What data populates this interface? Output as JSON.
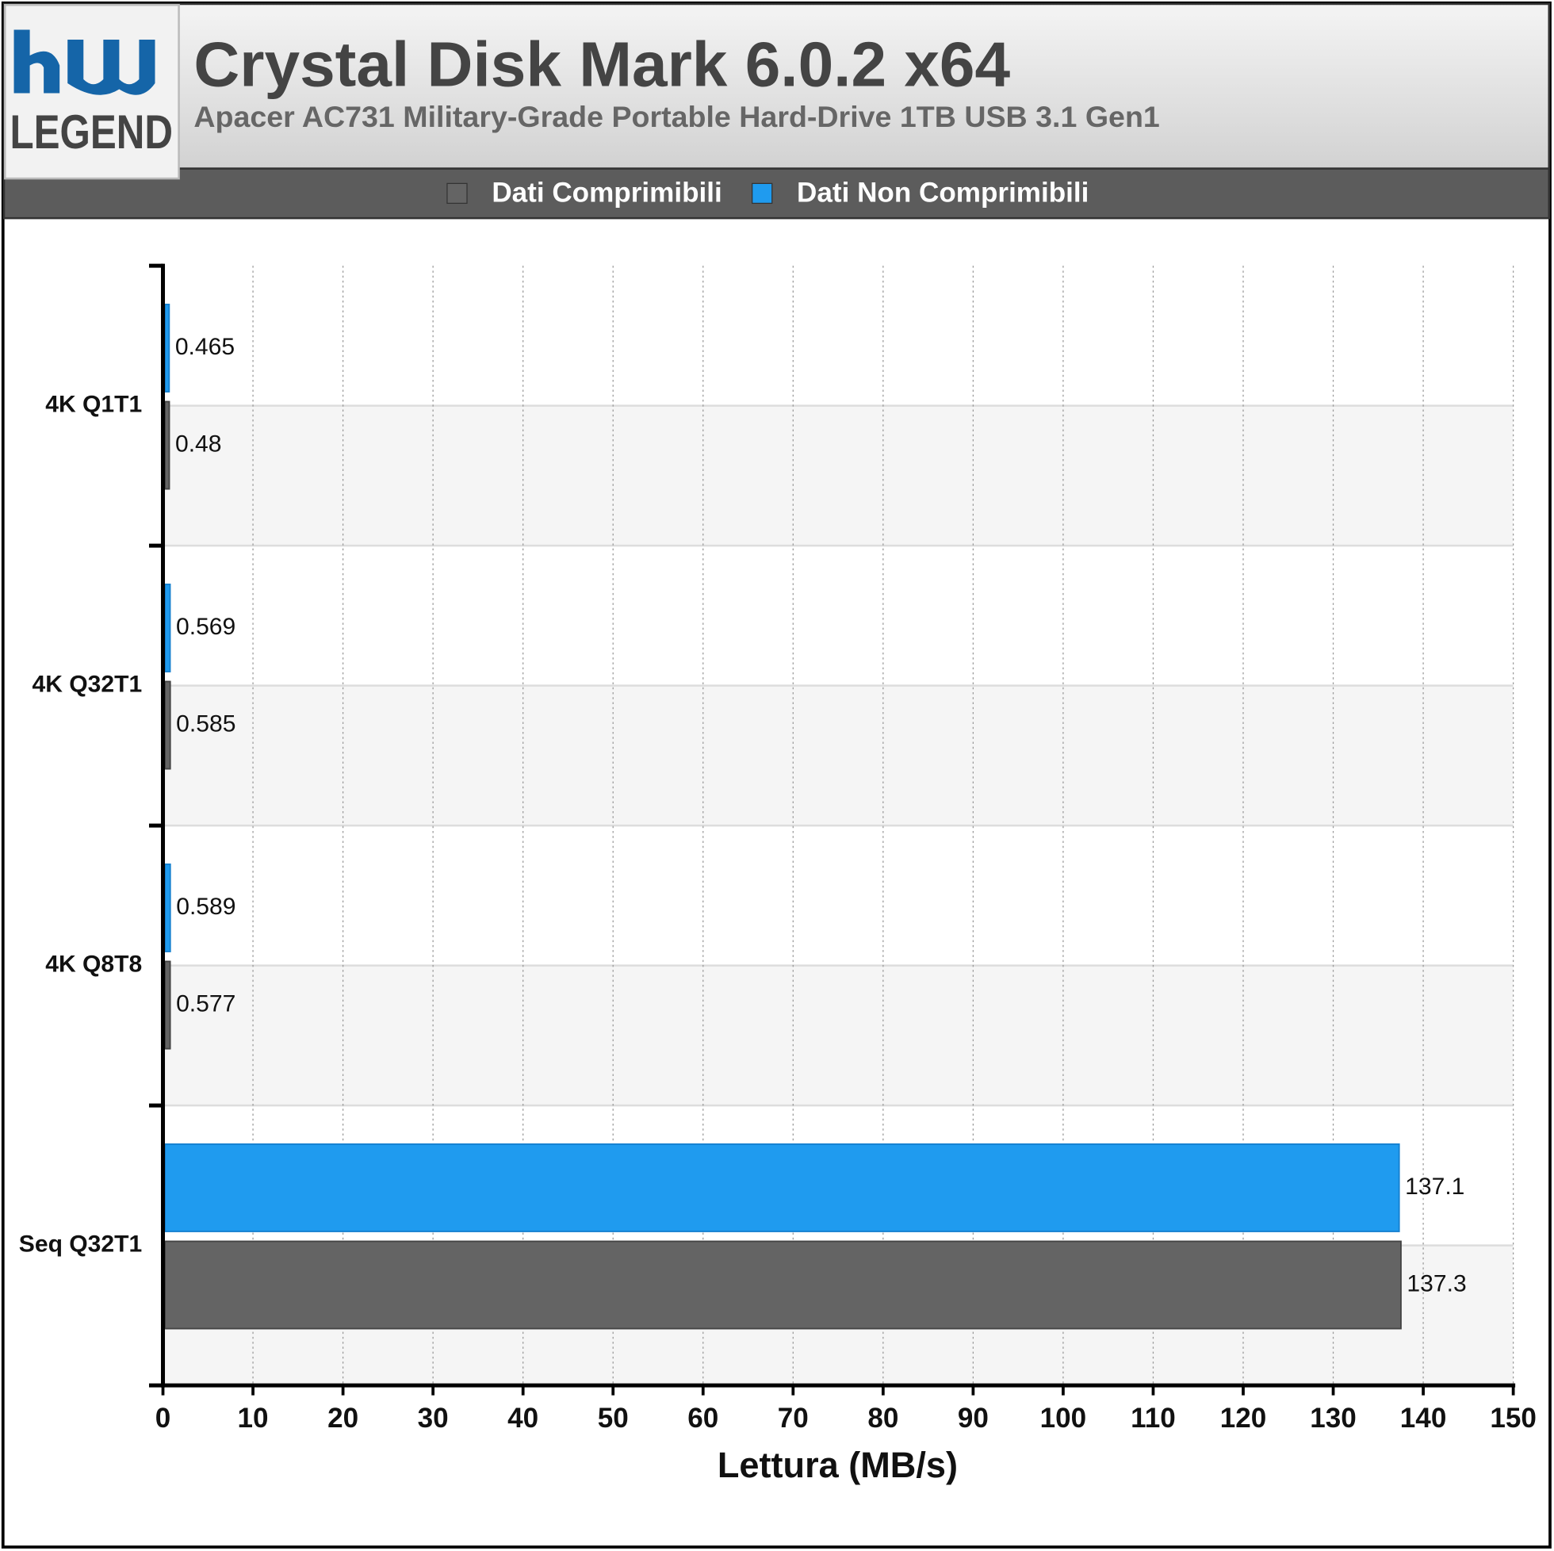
{
  "chart_data": {
    "type": "bar",
    "orientation": "horizontal",
    "title": "Crystal Disk Mark 6.0.2 x64",
    "subtitle": "Apacer AC731 Military-Grade Portable Hard-Drive 1TB USB 3.1 Gen1",
    "logo": "LEGEND",
    "categories": [
      "4K Q1T1",
      "4K Q32T1",
      "4K Q8T8",
      "Seq Q32T1"
    ],
    "series": [
      {
        "name": "Dati Comprimibili",
        "color": "#646464",
        "values": [
          0.48,
          0.585,
          0.577,
          137.3
        ]
      },
      {
        "name": "Dati Non Comprimibili",
        "color": "#1f9bef",
        "values": [
          0.465,
          0.569,
          0.589,
          137.1
        ]
      }
    ],
    "x_label": "Lettura (MB/s)",
    "xlim": [
      0,
      150
    ],
    "xticks": [
      0,
      10,
      20,
      30,
      40,
      50,
      60,
      70,
      80,
      90,
      100,
      110,
      120,
      130,
      140,
      150
    ],
    "grid": true
  }
}
